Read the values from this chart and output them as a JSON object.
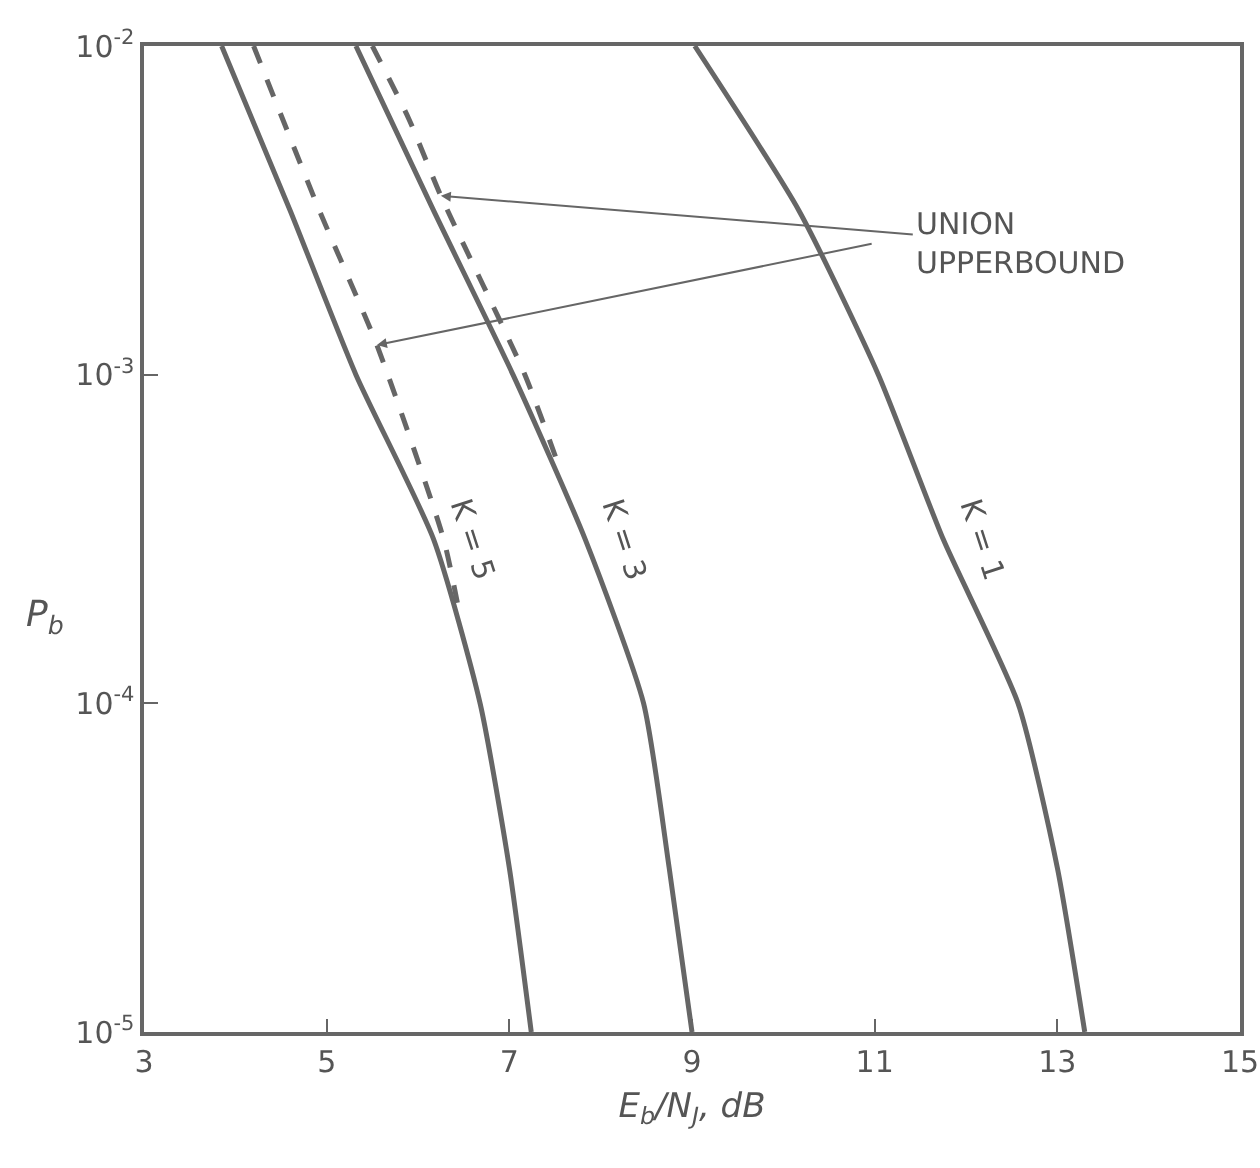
{
  "chart_data": {
    "type": "line",
    "xlabel": "E$_{b}$/N$_{J}$, dB",
    "ylabel": "P$_{b}$",
    "log": "y",
    "xlim": [
      3,
      15
    ],
    "xticks": [
      3,
      5,
      7,
      9,
      11,
      13,
      15
    ],
    "ylim": [
      1e-05,
      0.01
    ],
    "yticks": [
      {
        "value": 0.01,
        "label": "10$^{-2}$"
      },
      {
        "value": 0.001,
        "label": "10$^{-3}$"
      },
      {
        "value": 0.0001,
        "label": "10$^{-4}$"
      },
      {
        "value": 1e-05,
        "label": "10$^{-5}$"
      }
    ],
    "grid": false,
    "legend": false,
    "marker": "none",
    "series": [
      {
        "name": "K = 5",
        "color": "#666666",
        "line_style": "solid",
        "x": [
          3.85,
          4.6,
          5.32,
          6.17,
          6.68,
          7.0,
          7.24
        ],
        "values": [
          0.01,
          0.00316,
          0.001,
          0.000316,
          0.0001,
          3.16e-05,
          1e-05
        ]
      },
      {
        "name": "K = 3",
        "color": "#666666",
        "line_style": "solid",
        "x": [
          5.32,
          6.17,
          7.04,
          7.83,
          8.47,
          8.75,
          9.0
        ],
        "values": [
          0.01,
          0.00316,
          0.001,
          0.000316,
          0.0001,
          3.16e-05,
          1e-05
        ]
      },
      {
        "name": "K = 1",
        "color": "#666666",
        "line_style": "solid",
        "x": [
          9.03,
          10.17,
          11.04,
          11.75,
          12.57,
          13.0,
          13.3
        ],
        "values": [
          0.01,
          0.00316,
          0.001,
          0.000316,
          0.0001,
          3.16e-05,
          1e-05
        ]
      },
      {
        "color": "#666666",
        "line_style": "dashed",
        "x": [
          4.2,
          4.92,
          5.55,
          6.28,
          6.45
        ],
        "values": [
          0.01,
          0.00316,
          0.00123,
          0.000316,
          0.00019
        ]
      },
      {
        "color": "#666666",
        "line_style": "dashed",
        "x": [
          5.5,
          5.9,
          6.25,
          7.17,
          7.55
        ],
        "values": [
          0.01,
          0.006,
          0.0035,
          0.001,
          0.00052
        ]
      }
    ],
    "annotations": [
      {
        "text": "UNION\nUPPERBOUND",
        "x": 6.25,
        "y": 0.0035
      }
    ]
  }
}
